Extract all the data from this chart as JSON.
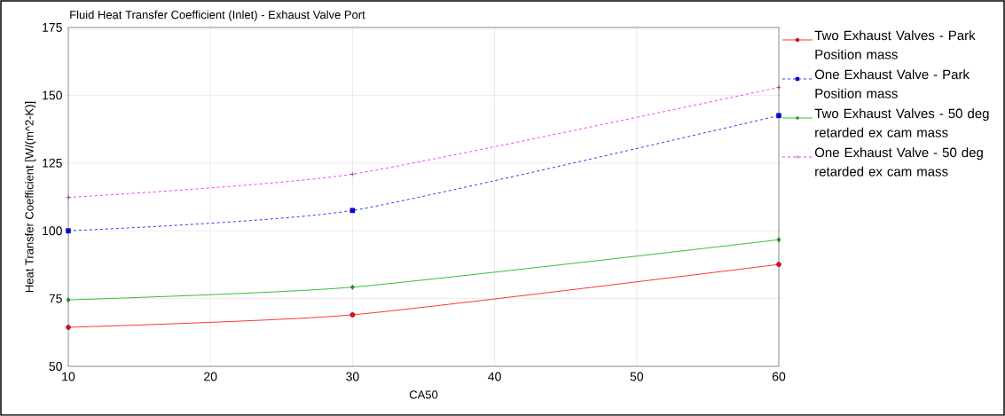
{
  "chart_data": {
    "type": "line",
    "title": "Fluid Heat Transfer Coefficient (Inlet) - Exhaust Valve Port",
    "xlabel": "CA50",
    "ylabel": "Heat Transfer Coefficient [W/(m^2-K)]",
    "x": [
      10,
      30,
      60
    ],
    "series": [
      {
        "name": "Two Exhaust Valves - Park Position mass",
        "color": "#ff0000",
        "marker": "circle",
        "line_style": "solid",
        "values": [
          64.4,
          69.0,
          87.6
        ]
      },
      {
        "name": "One Exhaust Valve - Park Position mass",
        "color": "#0000ff",
        "marker": "square",
        "line_style": "dashed",
        "values": [
          100.0,
          107.5,
          142.5
        ]
      },
      {
        "name": "Two Exhaust Valves - 50 deg retarded ex cam mass",
        "color": "#00b000",
        "marker": "diamond",
        "line_style": "solid",
        "values": [
          74.5,
          79.2,
          96.7
        ]
      },
      {
        "name": "One Exhaust Valve - 50 deg retarded ex cam mass",
        "color": "#ff00ff",
        "marker": "cross",
        "line_style": "dashed",
        "values": [
          112.3,
          120.9,
          152.9
        ]
      }
    ],
    "xlim": [
      10,
      60
    ],
    "xticks": [
      10,
      20,
      30,
      40,
      50,
      60
    ],
    "ylim": [
      50,
      175
    ],
    "yticks": [
      50,
      75,
      100,
      125,
      150,
      175
    ],
    "grid": true,
    "legend": "right"
  }
}
